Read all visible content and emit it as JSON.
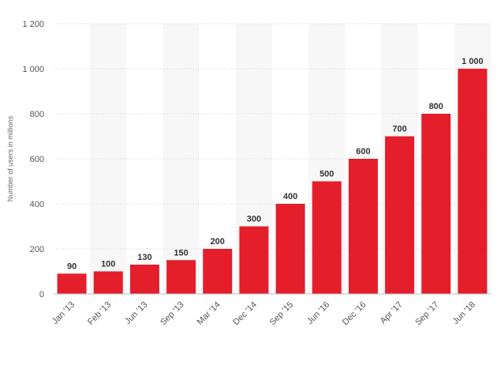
{
  "chart_data": {
    "type": "bar",
    "categories": [
      "Jan '13",
      "Feb '13",
      "Jun '13",
      "Sep '13",
      "Mar '14",
      "Dec '14",
      "Sep '15",
      "Jun '16",
      "Dec '16",
      "Apr '17",
      "Sep '17",
      "Jun '18"
    ],
    "values": [
      90,
      100,
      130,
      150,
      200,
      300,
      400,
      500,
      600,
      700,
      800,
      1000
    ],
    "value_labels": [
      "90",
      "100",
      "130",
      "150",
      "200",
      "300",
      "400",
      "500",
      "600",
      "700",
      "800",
      "1 000"
    ],
    "ylabel": "Number of users in millions",
    "ylim": [
      0,
      1200
    ],
    "y_ticks": [
      0,
      200,
      400,
      600,
      800,
      1000,
      1200
    ],
    "y_tick_labels": [
      "0",
      "200",
      "400",
      "600",
      "800",
      "1 000",
      "1 200"
    ],
    "grid": true,
    "alternating_bands": true,
    "bar_color": "#e41e2a",
    "band_color": "#f7f7f7",
    "grid_color": "#d4d4d4"
  }
}
